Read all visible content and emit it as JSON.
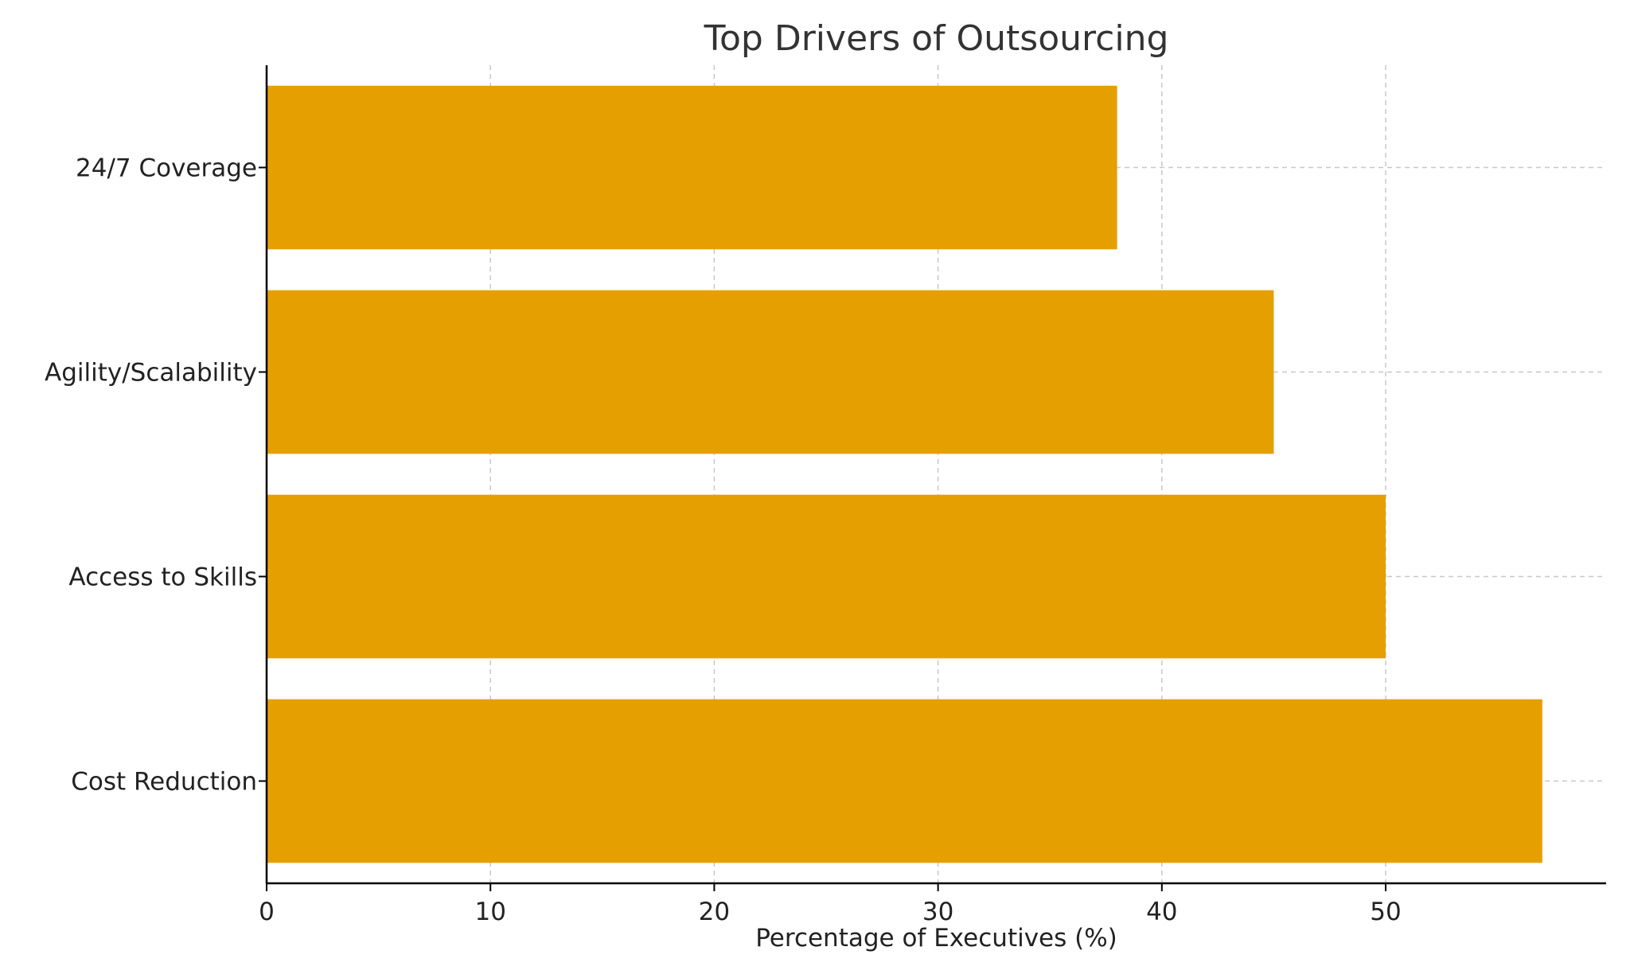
{
  "chart_data": {
    "type": "bar",
    "orientation": "horizontal",
    "title": "Top Drivers of Outsourcing",
    "xlabel": "Percentage of Executives (%)",
    "ylabel": "",
    "categories": [
      "Cost Reduction",
      "Access to Skills",
      "Agility/Scalability",
      "24/7 Coverage"
    ],
    "values": [
      57,
      50,
      45,
      38
    ],
    "xlim": [
      0,
      59.85
    ],
    "xticks": [
      0,
      10,
      20,
      30,
      40,
      50
    ],
    "grid": true,
    "bar_color": "#E5A000"
  }
}
